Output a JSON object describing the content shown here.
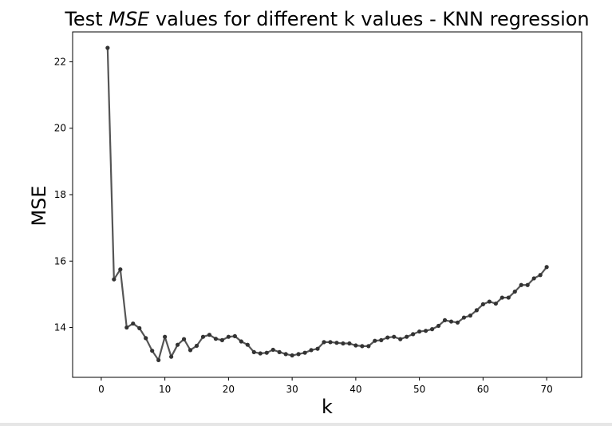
{
  "chart_data": {
    "type": "line",
    "title_parts": [
      {
        "text": "Test ",
        "italic": false
      },
      {
        "text": "MSE",
        "italic": true
      },
      {
        "text": " values for different k values - KNN regression",
        "italic": false
      }
    ],
    "xlabel": "k",
    "ylabel": "MSE",
    "xlim": [
      -4.5,
      75.5
    ],
    "ylim": [
      12.5,
      22.9
    ],
    "xticks": [
      0,
      10,
      20,
      30,
      40,
      50,
      60,
      70
    ],
    "yticks": [
      14,
      16,
      18,
      20,
      22
    ],
    "grid": false,
    "line_color": "#555555",
    "marker_color": "#333333",
    "series": [
      {
        "x": [
          1,
          2,
          3,
          4,
          5,
          6,
          7,
          8,
          9,
          10,
          11,
          12,
          13,
          14,
          15,
          16,
          17,
          18,
          19,
          20,
          21,
          22,
          23,
          24,
          25,
          26,
          27,
          28,
          29,
          30,
          31,
          32,
          33,
          34,
          35,
          36,
          37,
          38,
          39,
          40,
          41,
          42,
          43,
          44,
          45,
          46,
          47,
          48,
          49,
          50,
          51,
          52,
          53,
          54,
          55,
          56,
          57,
          58,
          59,
          60,
          61,
          62,
          63,
          64,
          65,
          66,
          67,
          68,
          69,
          70
        ],
        "y": [
          22.42,
          15.45,
          15.75,
          14.0,
          14.12,
          13.98,
          13.68,
          13.3,
          13.02,
          13.72,
          13.12,
          13.48,
          13.65,
          13.32,
          13.45,
          13.72,
          13.78,
          13.66,
          13.62,
          13.72,
          13.74,
          13.58,
          13.48,
          13.26,
          13.22,
          13.24,
          13.33,
          13.26,
          13.2,
          13.16,
          13.2,
          13.24,
          13.32,
          13.36,
          13.56,
          13.56,
          13.54,
          13.52,
          13.52,
          13.46,
          13.44,
          13.44,
          13.6,
          13.62,
          13.7,
          13.72,
          13.65,
          13.72,
          13.8,
          13.88,
          13.9,
          13.95,
          14.05,
          14.22,
          14.18,
          14.15,
          14.3,
          14.36,
          14.52,
          14.7,
          14.78,
          14.72,
          14.9,
          14.9,
          15.08,
          15.28,
          15.28,
          15.48,
          15.58,
          15.82
        ]
      }
    ]
  }
}
